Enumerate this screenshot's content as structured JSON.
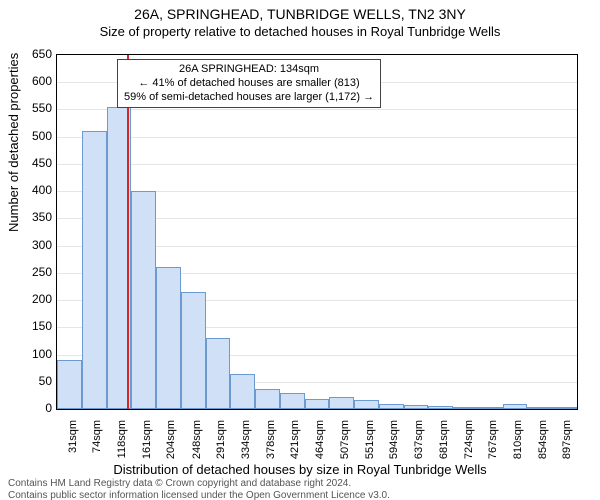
{
  "title": "26A, SPRINGHEAD, TUNBRIDGE WELLS, TN2 3NY",
  "subtitle": "Size of property relative to detached houses in Royal Tunbridge Wells",
  "y_axis_title": "Number of detached properties",
  "x_axis_title": "Distribution of detached houses by size in Royal Tunbridge Wells",
  "footer_line1": "Contains HM Land Registry data © Crown copyright and database right 2024.",
  "footer_line2": "Contains public sector information licensed under the Open Government Licence v3.0.",
  "chart": {
    "type": "histogram",
    "background_color": "#ffffff",
    "grid_color": "#e6e6e6",
    "border_color": "#000000",
    "bar_fill": "#cfe0f7",
    "bar_stroke": "#6b9bd1",
    "marker_color": "#d62728",
    "marker_x_value": 134,
    "label_fontsize": 12,
    "axis_title_fontsize": 13,
    "title_fontsize": 14,
    "x_min": 9,
    "x_max": 919,
    "bin_width_sqm": 43.33,
    "ylim": [
      0,
      650
    ],
    "y_ticks": [
      0,
      50,
      100,
      150,
      200,
      250,
      300,
      350,
      400,
      450,
      500,
      550,
      600,
      650
    ],
    "x_ticks": [
      31,
      74,
      118,
      161,
      204,
      248,
      291,
      334,
      378,
      421,
      464,
      507,
      551,
      594,
      637,
      681,
      724,
      767,
      810,
      854,
      897
    ],
    "x_tick_suffix": "sqm",
    "bars": [
      90,
      510,
      555,
      400,
      260,
      215,
      130,
      65,
      37,
      30,
      18,
      22,
      17,
      10,
      8,
      5,
      4,
      2,
      10,
      2,
      3
    ]
  },
  "annotation": {
    "line1": "26A SPRINGHEAD: 134sqm",
    "line2": "← 41% of detached houses are smaller (813)",
    "line3": "59% of semi-detached houses are larger (1,172) →"
  }
}
